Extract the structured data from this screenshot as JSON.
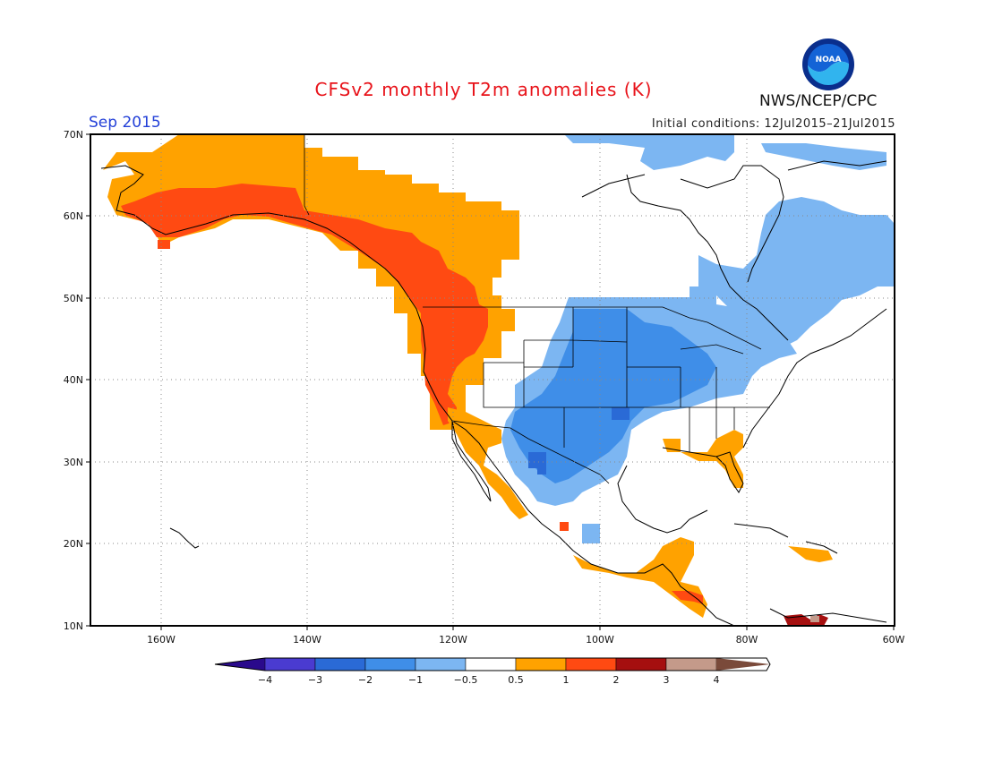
{
  "header": {
    "title": "CFSv2 monthly T2m anomalies (K)",
    "month": "Sep 2015",
    "initial_conditions": "Initial conditions: 12Jul2015–21Jul2015",
    "agency": "NWS/NCEP/CPC",
    "logo_text": "NOAA"
  },
  "axes": {
    "lat_labels": [
      "70N",
      "60N",
      "50N",
      "40N",
      "30N",
      "20N",
      "10N"
    ],
    "lon_labels": [
      "160W",
      "140W",
      "120W",
      "100W",
      "80W",
      "60W"
    ]
  },
  "colorbar": {
    "labels": [
      "−4",
      "−3",
      "−2",
      "−1",
      "−0.5",
      "0.5",
      "1",
      "2",
      "3",
      "4"
    ],
    "colors": [
      "#2a0a8c",
      "#4a3bd0",
      "#2a6ad6",
      "#3f8ee8",
      "#7cb6f2",
      "#ffffff",
      "#ffa200",
      "#ff4a12",
      "#a50f0f",
      "#c49a8a",
      "#7a4a3a"
    ]
  }
}
